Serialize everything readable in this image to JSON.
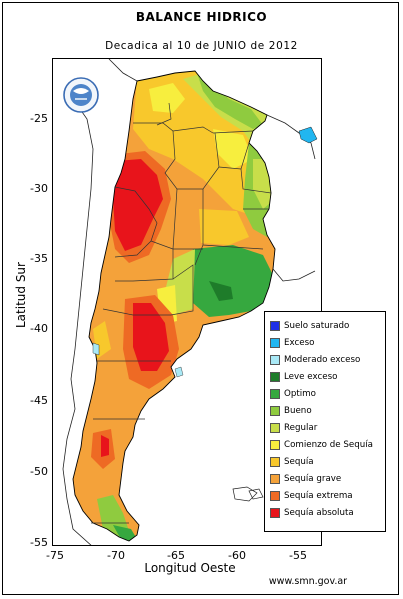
{
  "header": {
    "title": "BALANCE HIDRICO",
    "subtitle": "Decadica al 10 de JUNIO de 2012"
  },
  "axes": {
    "ylabel": "Latitud Sur",
    "xlabel": "Longitud Oeste",
    "yticks": [
      "-25",
      "-30",
      "-35",
      "-40",
      "-45",
      "-50",
      "-55"
    ],
    "xticks": [
      "-75",
      "-70",
      "-65",
      "-60",
      "-55"
    ],
    "lat_range": [
      -21.5,
      -55
    ],
    "lon_range": [
      -75.5,
      -53.5
    ]
  },
  "legend": {
    "items": [
      {
        "label": "Suelo saturado",
        "color": "#1f2fe6"
      },
      {
        "label": "Exceso",
        "color": "#21b6f0"
      },
      {
        "label": "Moderado exceso",
        "color": "#a9e9f6"
      },
      {
        "label": "Leve exceso",
        "color": "#1e7c2a"
      },
      {
        "label": "Optimo",
        "color": "#36a83f"
      },
      {
        "label": "Bueno",
        "color": "#8fcb3f"
      },
      {
        "label": "Regular",
        "color": "#c8de4a"
      },
      {
        "label": "Comienzo de Sequía",
        "color": "#f7ee3e"
      },
      {
        "label": "Sequía",
        "color": "#f8c82c"
      },
      {
        "label": "Sequía grave",
        "color": "#f4a23a"
      },
      {
        "label": "Sequía extrema",
        "color": "#ee6a24"
      },
      {
        "label": "Sequía absoluta",
        "color": "#e8141b"
      }
    ]
  },
  "footer": {
    "source": "www.smn.gov.ar"
  },
  "logo": {
    "icon": "smn-logo-icon"
  }
}
